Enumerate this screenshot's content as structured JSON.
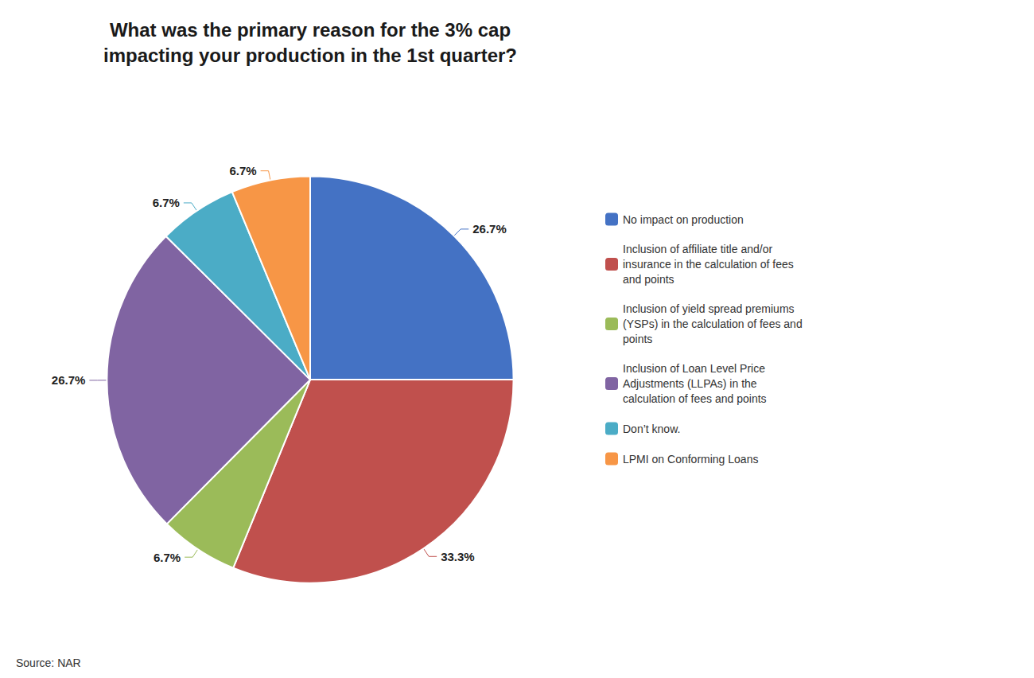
{
  "chart_data": {
    "type": "pie",
    "title": "What was the primary reason for the 3% cap\nimpacting your production in the 1st quarter?",
    "categories": [
      "No impact on production",
      "Inclusion of affiliate title and/or\ninsurance in the calculation of fees\nand points",
      "Inclusion of yield spread premiums\n(YSPs) in the calculation of fees and\npoints",
      "Inclusion of Loan Level Price\nAdjustments (LLPAs) in the\ncalculation of fees and points",
      "Don’t know.",
      "LPMI on Conforming Loans"
    ],
    "values": [
      26.7,
      33.3,
      6.7,
      26.7,
      6.7,
      6.7
    ],
    "value_labels": [
      "26.7%",
      "33.3%",
      "6.7%",
      "26.7%",
      "6.7%",
      "6.7%"
    ],
    "colors": [
      "#4472C4",
      "#C0504D",
      "#9BBB59",
      "#8064A2",
      "#4BACC6",
      "#F79646"
    ],
    "data_labels": true,
    "legend": "right",
    "annotations": [
      "Source: NAR"
    ]
  }
}
